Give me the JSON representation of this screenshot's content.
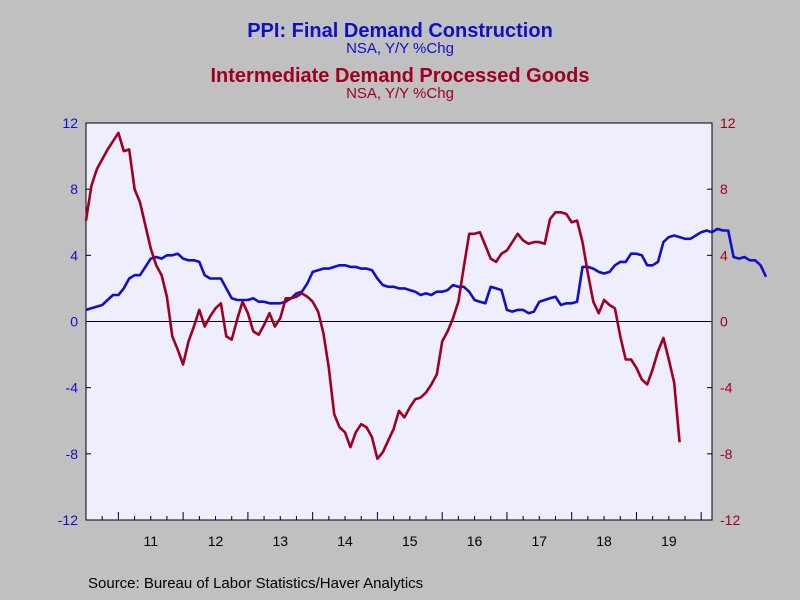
{
  "titles": [
    {
      "text": "PPI: Final Demand Construction",
      "color": "#1010C8"
    },
    {
      "subtitle": "NSA, Y/Y %Chg",
      "color": "#1010C8"
    },
    {
      "text": "Intermediate Demand Processed Goods",
      "color": "#A00020"
    },
    {
      "subtitle": "NSA, Y/Y %Chg",
      "color": "#A00020"
    }
  ],
  "source": "Source:  Bureau of Labor Statistics/Haver Analytics",
  "chart_data": {
    "type": "line",
    "x_start": "2010-07",
    "x_end": "2020-03",
    "xtick_labels": [
      "11",
      "12",
      "13",
      "14",
      "15",
      "16",
      "17",
      "18",
      "19"
    ],
    "ylim": [
      -12,
      12
    ],
    "yticks": [
      -12,
      -8,
      -4,
      0,
      4,
      8,
      12
    ],
    "left_axis_color": "#1010C8",
    "right_axis_color": "#A00020",
    "plot_background": "#EEEEFF",
    "zero_line": true,
    "grid": false,
    "series": [
      {
        "name": "PPI: Final Demand Construction",
        "color": "#1010C8",
        "axis": "left",
        "start": "2010-07",
        "values": [
          0.7,
          0.8,
          0.9,
          1.0,
          1.3,
          1.6,
          1.6,
          2.0,
          2.6,
          2.8,
          2.8,
          3.3,
          3.8,
          3.9,
          3.8,
          4.0,
          4.0,
          4.1,
          3.8,
          3.7,
          3.7,
          3.6,
          2.8,
          2.6,
          2.6,
          2.6,
          2.0,
          1.4,
          1.3,
          1.3,
          1.3,
          1.4,
          1.2,
          1.2,
          1.1,
          1.1,
          1.1,
          1.2,
          1.4,
          1.7,
          1.8,
          2.3,
          3.0,
          3.1,
          3.2,
          3.2,
          3.3,
          3.4,
          3.4,
          3.3,
          3.3,
          3.2,
          3.2,
          3.1,
          2.6,
          2.2,
          2.1,
          2.1,
          2.0,
          2.0,
          1.9,
          1.8,
          1.6,
          1.7,
          1.6,
          1.8,
          1.8,
          1.9,
          2.2,
          2.1,
          2.1,
          1.8,
          1.3,
          1.2,
          1.1,
          2.1,
          2.0,
          1.9,
          0.7,
          0.6,
          0.7,
          0.7,
          0.5,
          0.6,
          1.2,
          1.3,
          1.4,
          1.5,
          1.0,
          1.1,
          1.1,
          1.2,
          3.3,
          3.3,
          3.2,
          3.0,
          2.9,
          3.0,
          3.4,
          3.6,
          3.6,
          4.1,
          4.1,
          4.0,
          3.4,
          3.4,
          3.6,
          4.8,
          5.1,
          5.2,
          5.1,
          5.0,
          5.0,
          5.2,
          5.4,
          5.5,
          5.4,
          5.6,
          5.5,
          5.5,
          3.9,
          3.8,
          3.9,
          3.7,
          3.7,
          3.4,
          2.7
        ]
      },
      {
        "name": "Intermediate Demand Processed Goods",
        "color": "#A00020",
        "axis": "right",
        "start": "2010-07",
        "values": [
          6.1,
          8.2,
          9.2,
          9.8,
          10.4,
          10.9,
          11.4,
          10.3,
          10.4,
          8.0,
          7.2,
          5.8,
          4.4,
          3.4,
          2.8,
          1.5,
          -0.9,
          -1.7,
          -2.6,
          -1.2,
          -0.3,
          0.7,
          -0.3,
          0.3,
          0.8,
          1.1,
          -0.9,
          -1.1,
          0.1,
          1.2,
          0.5,
          -0.6,
          -0.8,
          -0.2,
          0.5,
          -0.3,
          0.2,
          1.4,
          1.4,
          1.5,
          1.7,
          1.5,
          1.2,
          0.6,
          -0.7,
          -2.8,
          -5.6,
          -6.4,
          -6.7,
          -7.6,
          -6.7,
          -6.2,
          -6.4,
          -7.0,
          -8.3,
          -7.9,
          -7.2,
          -6.5,
          -5.4,
          -5.8,
          -5.2,
          -4.7,
          -4.6,
          -4.3,
          -3.8,
          -3.2,
          -1.2,
          -0.6,
          0.2,
          1.2,
          3.3,
          5.3,
          5.3,
          5.4,
          4.6,
          3.8,
          3.6,
          4.1,
          4.3,
          4.8,
          5.3,
          4.9,
          4.7,
          4.8,
          4.8,
          4.7,
          6.2,
          6.6,
          6.6,
          6.5,
          6.0,
          6.1,
          4.8,
          2.9,
          1.2,
          0.5,
          1.3,
          1.0,
          0.8,
          -0.9,
          -2.3,
          -2.3,
          -2.8,
          -3.5,
          -3.8,
          -2.9,
          -1.8,
          -1.0,
          -2.3,
          -3.7,
          -7.3
        ]
      }
    ]
  }
}
